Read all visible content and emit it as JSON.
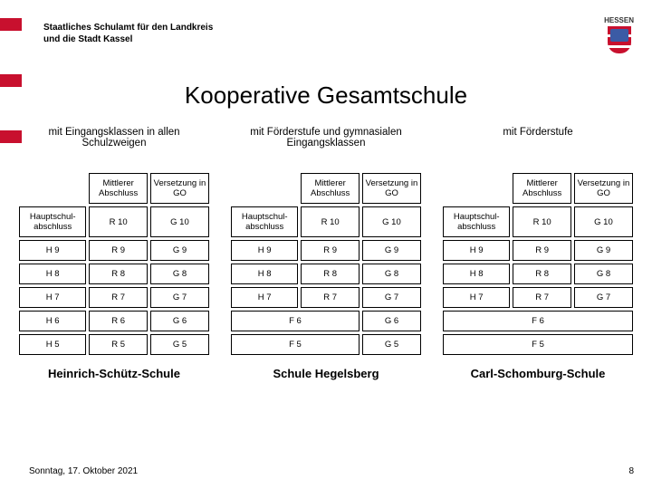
{
  "header": {
    "line1": "Staatliches Schulamt für den Landkreis",
    "line2": "und die Stadt Kassel",
    "logo_text": "HESSEN"
  },
  "title": "Kooperative Gesamtschule",
  "columns": [
    {
      "title": "mit Eingangsklassen in allen Schulzweigen",
      "headers": [
        "",
        "Mittlerer Abschluss",
        "Versetzung in GO"
      ],
      "rows": [
        [
          "Hauptschul-abschluss",
          "R 10",
          "G 10"
        ],
        [
          "H 9",
          "R 9",
          "G 9"
        ],
        [
          "H 8",
          "R 8",
          "G 8"
        ],
        [
          "H 7",
          "R 7",
          "G 7"
        ],
        [
          "H 6",
          "R 6",
          "G 6"
        ],
        [
          "H 5",
          "R 5",
          "G 5"
        ]
      ],
      "footer": "Heinrich-Schütz-Schule"
    },
    {
      "title": "mit Förderstufe und gymnasialen Eingangsklassen",
      "headers": [
        "",
        "Mittlerer Abschluss",
        "Versetzung in GO"
      ],
      "rows": [
        [
          "Hauptschul-abschluss",
          "R 10",
          "G 10"
        ],
        [
          "H 9",
          "R 9",
          "G 9"
        ],
        [
          "H 8",
          "R 8",
          "G 8"
        ],
        [
          "H 7",
          "R 7",
          "G 7"
        ]
      ],
      "merged": [
        [
          "F 6",
          "G 6"
        ],
        [
          "F 5",
          "G 5"
        ]
      ],
      "footer": "Schule Hegelsberg"
    },
    {
      "title": "mit Förderstufe",
      "headers": [
        "",
        "Mittlerer Abschluss",
        "Versetzung in GO"
      ],
      "rows": [
        [
          "Hauptschul-abschluss",
          "R 10",
          "G 10"
        ],
        [
          "H 9",
          "R 9",
          "G 9"
        ],
        [
          "H 8",
          "R 8",
          "G 8"
        ],
        [
          "H 7",
          "R 7",
          "G 7"
        ]
      ],
      "merged3": [
        [
          "F 6"
        ],
        [
          "F 5"
        ]
      ],
      "footer": "Carl-Schomburg-Schule"
    }
  ],
  "footer": {
    "date": "Sonntag, 17. Oktober 2021",
    "page": "8"
  },
  "colors": {
    "accent": "#c8102e",
    "background": "#ffffff",
    "text": "#000000",
    "border": "#000000"
  }
}
